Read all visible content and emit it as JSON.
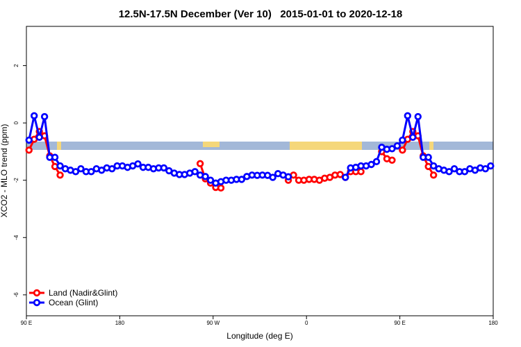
{
  "chart_data": {
    "type": "line",
    "title": "12.5N-17.5N December (Ver 10)   2015-01-01 to 2020-12-18",
    "x_label": "Longitude (deg E)",
    "y_label": "XCO2 - MLO trend (ppm)",
    "x": [
      92.5,
      97.5,
      102.5,
      107.5,
      112.5,
      117.5,
      122.5,
      127.5,
      132.5,
      137.5,
      142.5,
      147.5,
      152.5,
      157.5,
      162.5,
      167.5,
      172.5,
      177.5,
      182.5,
      187.5,
      192.5,
      197.5,
      202.5,
      207.5,
      212.5,
      217.5,
      222.5,
      227.5,
      232.5,
      237.5,
      242.5,
      247.5,
      252.5,
      257.5,
      262.5,
      267.5,
      272.5,
      277.5,
      282.5,
      287.5,
      292.5,
      297.5,
      302.5,
      307.5,
      312.5,
      317.5,
      322.5,
      327.5,
      332.5,
      337.5,
      342.5,
      347.5,
      352.5,
      357.5,
      362.5,
      367.5,
      372.5,
      377.5,
      382.5,
      387.5,
      392.5,
      397.5,
      402.5,
      407.5,
      412.5,
      417.5,
      422.5,
      427.5,
      432.5,
      437.5,
      442.5,
      447.5,
      452.5,
      457.5,
      462.5,
      467.5,
      472.5,
      477.5,
      482.5,
      487.5,
      492.5,
      497.5,
      502.5,
      507.5,
      512.5,
      517.5,
      522.5,
      527.5,
      532.5,
      537.5
    ],
    "series": [
      {
        "name": "Land (Nadir&Glint)",
        "color": "#ff0000",
        "values": [
          -0.95,
          -0.57,
          -0.3,
          -0.45,
          -1.15,
          -1.52,
          -1.82,
          null,
          null,
          null,
          null,
          null,
          null,
          null,
          null,
          null,
          null,
          null,
          null,
          null,
          null,
          null,
          null,
          null,
          null,
          null,
          null,
          null,
          null,
          null,
          null,
          null,
          null,
          -1.42,
          -1.95,
          -2.1,
          -2.25,
          -2.27,
          null,
          null,
          null,
          null,
          null,
          null,
          null,
          null,
          null,
          null,
          null,
          null,
          -2.0,
          -1.82,
          -2.0,
          -2.0,
          -1.97,
          -1.97,
          -2.0,
          -1.93,
          -1.9,
          -1.82,
          -1.8,
          -1.9,
          -1.7,
          -1.7,
          -1.7,
          null,
          null,
          null,
          -1.0,
          -1.25,
          -1.3,
          null,
          -0.95,
          -0.57,
          -0.3,
          -0.45,
          -1.15,
          -1.52,
          -1.82,
          null,
          null,
          null,
          null,
          null,
          null,
          null,
          null,
          null,
          null,
          null
        ]
      },
      {
        "name": "Ocean (Glint)",
        "color": "#0000ff",
        "values": [
          -0.6,
          0.25,
          -0.5,
          0.22,
          -1.2,
          -1.2,
          -1.5,
          -1.6,
          -1.65,
          -1.7,
          -1.6,
          -1.7,
          -1.7,
          -1.6,
          -1.65,
          -1.57,
          -1.6,
          -1.5,
          -1.5,
          -1.55,
          -1.5,
          -1.43,
          -1.55,
          -1.55,
          -1.6,
          -1.57,
          -1.57,
          -1.67,
          -1.75,
          -1.8,
          -1.8,
          -1.75,
          -1.7,
          -1.82,
          -1.87,
          -2.0,
          -2.1,
          -2.05,
          -2.0,
          -2.0,
          -1.97,
          -1.97,
          -1.87,
          -1.82,
          -1.83,
          -1.82,
          -1.83,
          -1.9,
          -1.77,
          -1.82,
          -1.88,
          null,
          null,
          null,
          null,
          null,
          null,
          null,
          null,
          null,
          null,
          -1.9,
          -1.57,
          -1.55,
          -1.5,
          -1.5,
          -1.45,
          -1.35,
          -0.85,
          -0.92,
          -0.9,
          -0.8,
          -0.6,
          0.25,
          -0.5,
          0.22,
          -1.2,
          -1.2,
          -1.5,
          -1.6,
          -1.65,
          -1.7,
          -1.6,
          -1.7,
          -1.7,
          -1.6,
          -1.65,
          -1.57,
          -1.6,
          -1.5
        ]
      }
    ],
    "xlim": [
      90,
      540
    ],
    "xticks": [
      {
        "value": 90,
        "label": "90 E"
      },
      180,
      {
        "value": 270,
        "label": "90 W"
      },
      {
        "value": 360,
        "label": "0"
      },
      {
        "value": 450,
        "label": "90 E"
      },
      {
        "value": 540,
        "label": "180"
      }
    ],
    "ylim": [
      -6.73,
      3.37
    ],
    "yticks": [
      2,
      0,
      -2,
      -4,
      -6
    ],
    "legend": "bottom-left"
  }
}
